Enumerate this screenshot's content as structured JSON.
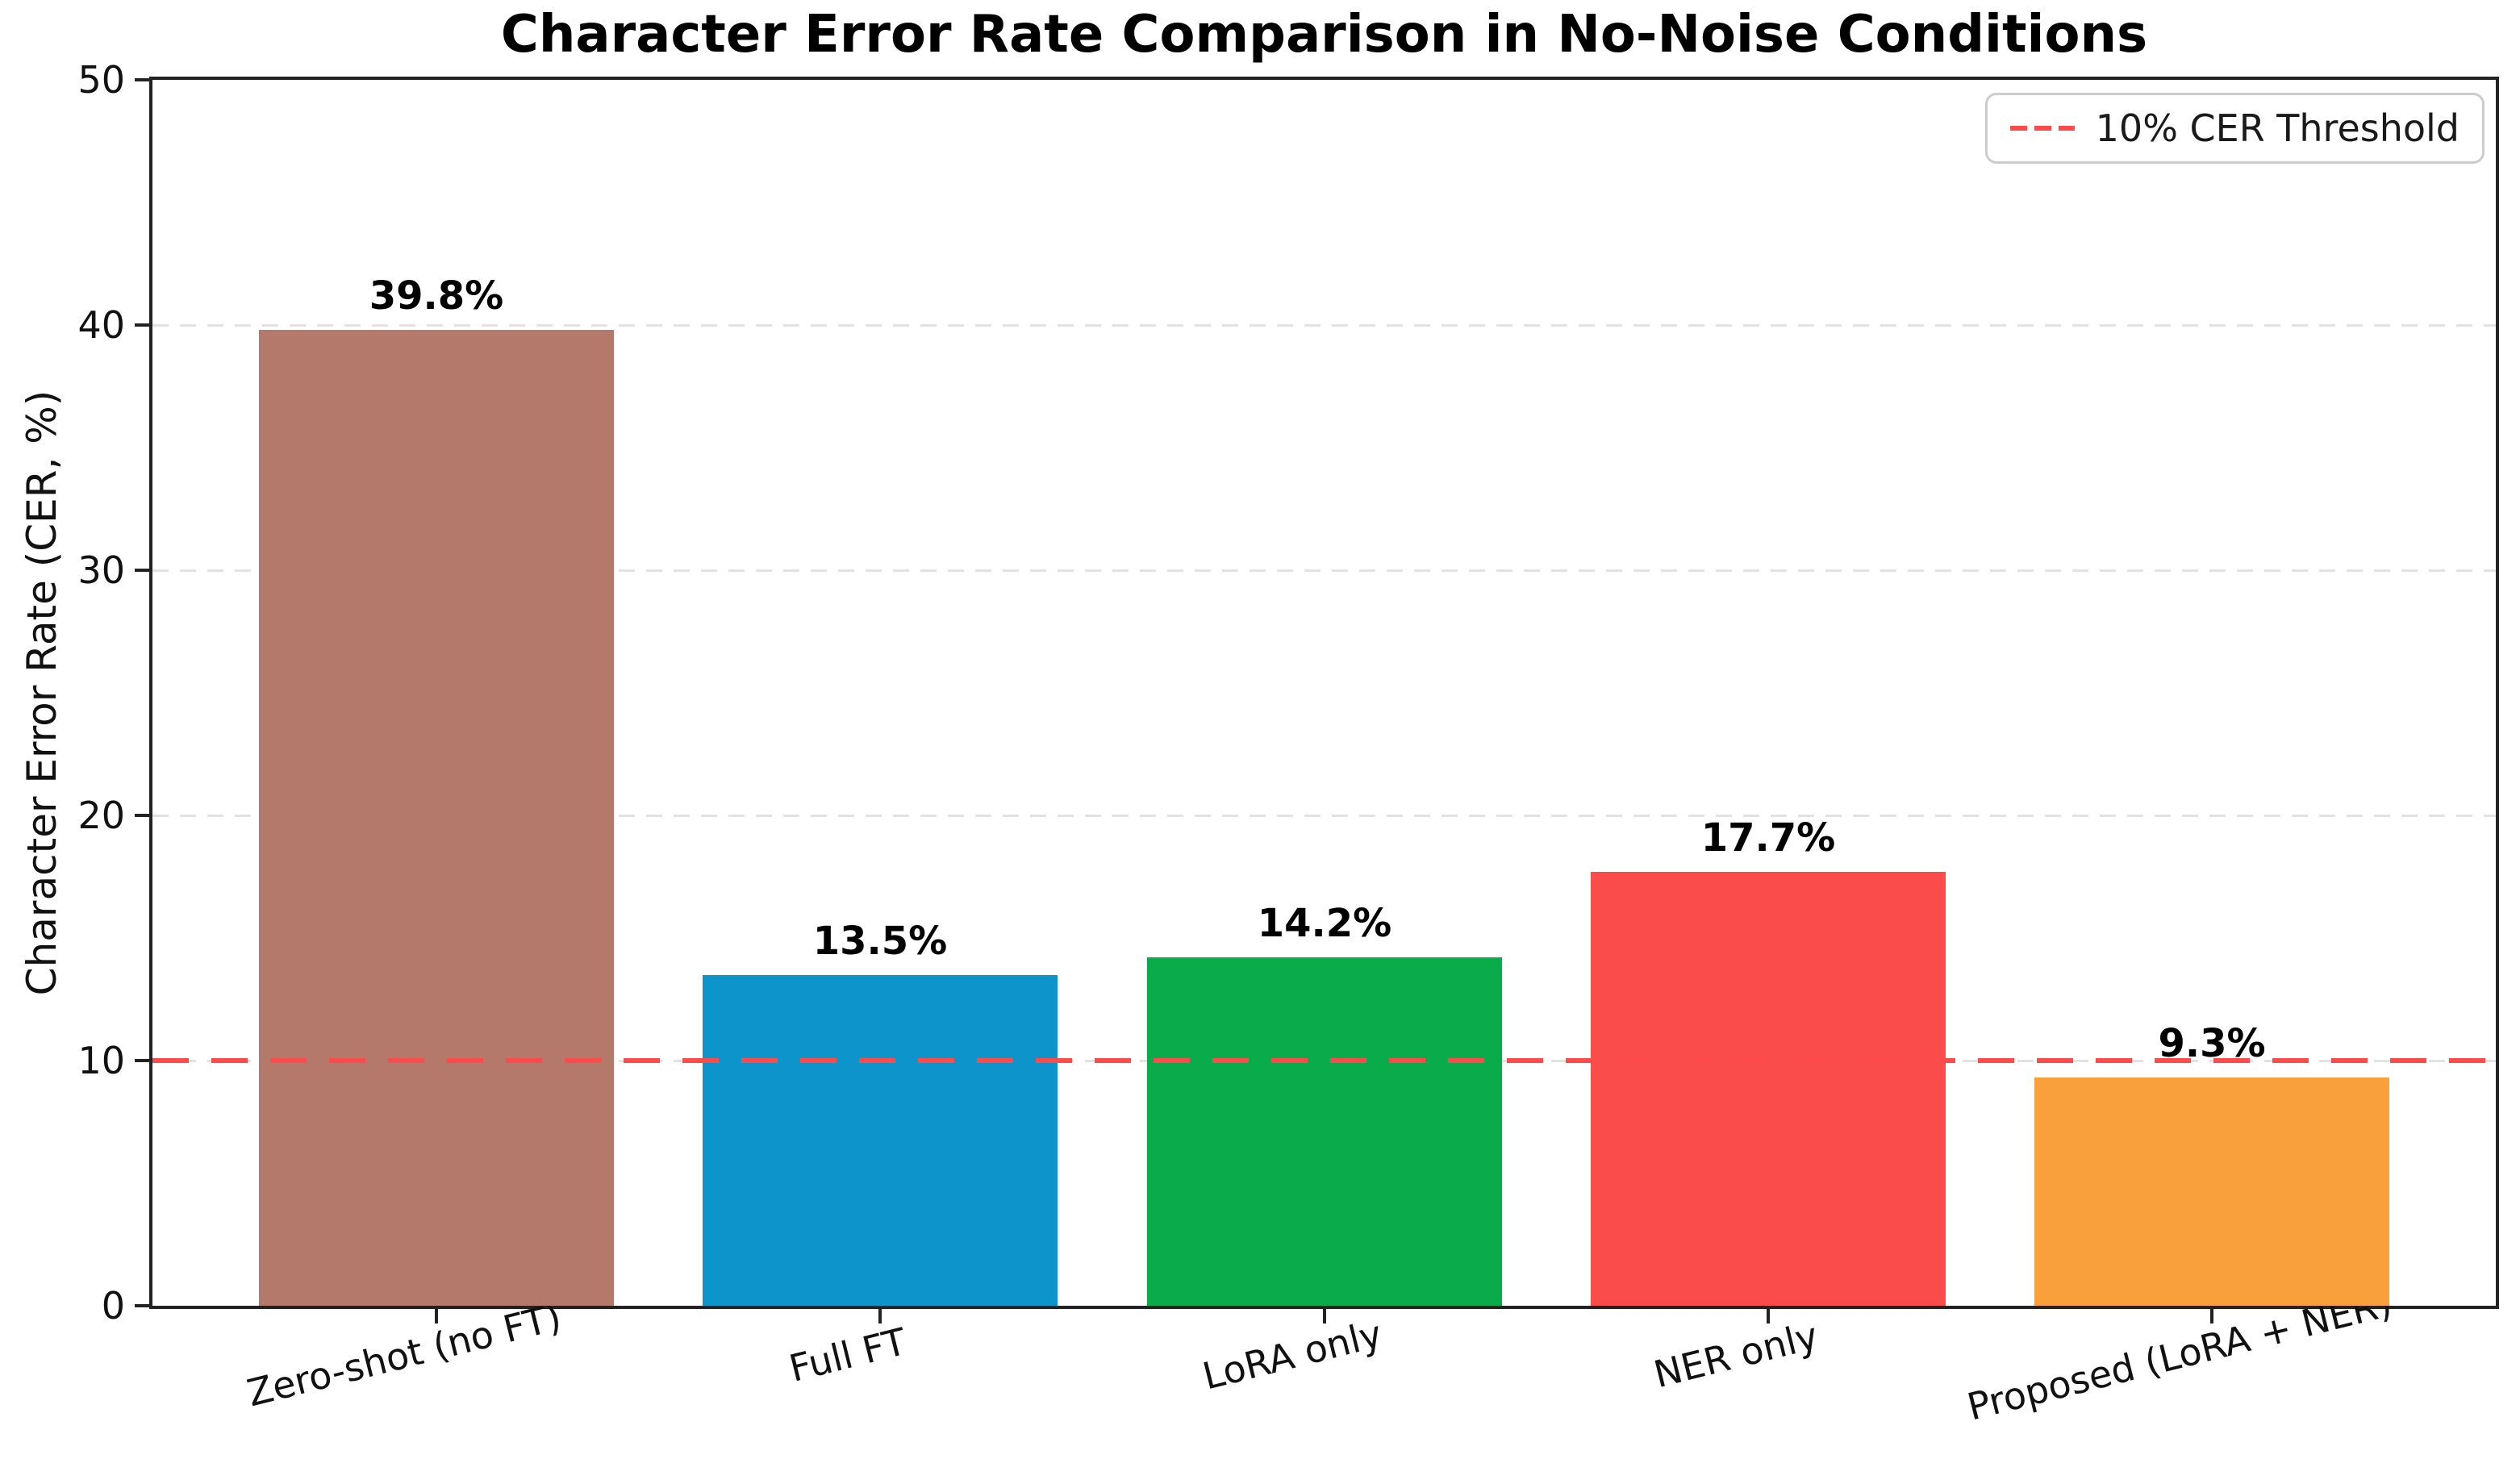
{
  "chart_data": {
    "type": "bar",
    "title": "Character Error Rate Comparison in No-Noise Conditions",
    "xlabel": "",
    "ylabel": "Character Error Rate (CER, %)",
    "categories": [
      "Zero-shot (no FT)",
      "Full FT",
      "LoRA only",
      "NER only",
      "Proposed (LoRA + NER)"
    ],
    "values": [
      39.8,
      13.5,
      14.2,
      17.7,
      9.3
    ],
    "value_labels": [
      "39.8%",
      "13.5%",
      "14.2%",
      "17.7%",
      "9.3%"
    ],
    "bar_colors": [
      "#b5796c",
      "#0d94ca",
      "#09ab4b",
      "#fb4c4c",
      "#f9a03c"
    ],
    "ylim": [
      0,
      50
    ],
    "yticks": [
      0,
      10,
      20,
      30,
      40,
      50
    ],
    "grid": "horizontal-dashed",
    "legend_position": "upper-right",
    "threshold": {
      "value": 10,
      "label": "10% CER Threshold",
      "color": "#fb4b4b",
      "style": "dashed"
    },
    "colors": {
      "spine": "#222222",
      "grid": "#e2e2e2",
      "text": "#111111"
    }
  }
}
